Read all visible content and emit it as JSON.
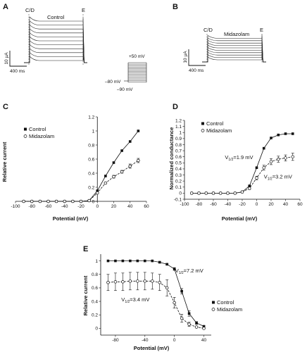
{
  "panels": {
    "A": {
      "letter": "A",
      "marker_cd": "C/D",
      "marker_e": "E",
      "condition": "Control",
      "scale_y": "10 µA",
      "scale_x": "400 ms"
    },
    "B": {
      "letter": "B",
      "marker_cd": "C/D",
      "marker_e": "E",
      "condition": "Midazolam",
      "scale_y": "10 µA",
      "scale_x": "400 ms"
    },
    "protocol": {
      "top_v": "+50 mV",
      "hold_v": "–80 mV",
      "bottom_v": "–90 mV"
    }
  },
  "chart_data": [
    {
      "id": "C",
      "letter": "C",
      "type": "line",
      "xlabel": "Potential (mV)",
      "ylabel": "Relative current",
      "xlim": [
        -100,
        60
      ],
      "ylim": [
        0,
        1.2
      ],
      "xticks": [
        -100,
        -80,
        -60,
        -40,
        -20,
        0,
        20,
        40,
        60
      ],
      "yticks": [
        0,
        0.2,
        0.4,
        0.6,
        0.8,
        1.0,
        1.2
      ],
      "legend": "top-left",
      "series": [
        {
          "name": "Control",
          "marker": "filled-square",
          "x": [
            -90,
            -80,
            -70,
            -60,
            -50,
            -40,
            -30,
            -20,
            -10,
            0,
            10,
            20,
            30,
            40,
            50
          ],
          "y": [
            0,
            0,
            0,
            0,
            0,
            0,
            0,
            0,
            0.01,
            0.15,
            0.36,
            0.55,
            0.72,
            0.85,
            1.0
          ]
        },
        {
          "name": "Midazolam",
          "marker": "open-circle",
          "x": [
            -90,
            -80,
            -70,
            -60,
            -50,
            -40,
            -30,
            -20,
            -10,
            0,
            10,
            20,
            30,
            40,
            50
          ],
          "y": [
            0,
            0,
            0,
            0,
            0,
            0,
            0,
            0,
            0.01,
            0.12,
            0.26,
            0.35,
            0.42,
            0.5,
            0.58
          ],
          "err": [
            0,
            0,
            0,
            0,
            0,
            0,
            0,
            0,
            0,
            0.01,
            0.01,
            0.02,
            0.02,
            0.03,
            0.03
          ]
        }
      ]
    },
    {
      "id": "D",
      "letter": "D",
      "type": "line",
      "xlabel": "Potential (mV)",
      "ylabel": "Normalized conductance",
      "xlim": [
        -100,
        60
      ],
      "ylim": [
        -0.1,
        1.2
      ],
      "xticks": [
        -100,
        -80,
        -60,
        -40,
        -20,
        0,
        20,
        40,
        60
      ],
      "yticks": [
        -0.1,
        0,
        0.1,
        0.2,
        0.3,
        0.4,
        0.5,
        0.6,
        0.7,
        0.8,
        0.9,
        1.0,
        1.1,
        1.2
      ],
      "legend": "top-left",
      "annotations": [
        {
          "pre": "V",
          "sub": "1/2",
          "post": "=1.9 mV",
          "x": -44,
          "y": 0.56
        },
        {
          "pre": "V",
          "sub": "1/2",
          "post": "=3.2 mV",
          "x": 10,
          "y": 0.24
        }
      ],
      "series": [
        {
          "name": "Control",
          "marker": "filled-square",
          "x": [
            -90,
            -80,
            -70,
            -60,
            -50,
            -40,
            -30,
            -20,
            -10,
            0,
            10,
            20,
            30,
            40,
            50
          ],
          "y": [
            0,
            0,
            0,
            0,
            0,
            0,
            0,
            0.02,
            0.12,
            0.42,
            0.74,
            0.91,
            0.96,
            0.98,
            0.98
          ]
        },
        {
          "name": "Midazolam",
          "marker": "open-circle",
          "x": [
            -90,
            -80,
            -70,
            -60,
            -50,
            -40,
            -30,
            -20,
            -10,
            0,
            10,
            20,
            30,
            40,
            50
          ],
          "y": [
            0,
            0,
            0,
            0,
            0,
            0,
            0,
            0.02,
            0.08,
            0.25,
            0.42,
            0.52,
            0.56,
            0.58,
            0.6
          ],
          "err": [
            0,
            0,
            0,
            0,
            0,
            0,
            0,
            0.01,
            0.02,
            0.03,
            0.04,
            0.05,
            0.05,
            0.05,
            0.06
          ]
        }
      ]
    },
    {
      "id": "E",
      "letter": "E",
      "type": "line",
      "xlabel": "Potential (mV)",
      "ylabel": "Relative current",
      "xlim": [
        -100,
        50
      ],
      "ylim": [
        -0.1,
        1.1
      ],
      "xticks": [
        -80,
        -40,
        0,
        40
      ],
      "yticks": [
        0,
        0.2,
        0.4,
        0.6,
        0.8,
        1.0
      ],
      "legend": "right",
      "annotations": [
        {
          "pre": "V",
          "sub": "1/2",
          "post": "=7.2 mV",
          "x": 1,
          "y": 0.83
        },
        {
          "pre": "V",
          "sub": "1/2",
          "post": "=3.4 mV",
          "x": -72,
          "y": 0.4
        }
      ],
      "series": [
        {
          "name": "Control",
          "marker": "filled-square",
          "x": [
            -90,
            -80,
            -70,
            -60,
            -50,
            -40,
            -30,
            -20,
            -10,
            0,
            10,
            20,
            30,
            40
          ],
          "y": [
            1.0,
            1.0,
            1.0,
            1.0,
            1.0,
            1.0,
            1.0,
            0.98,
            0.95,
            0.88,
            0.55,
            0.22,
            0.08,
            0.03
          ],
          "err": [
            0,
            0,
            0,
            0,
            0,
            0,
            0,
            0.01,
            0.01,
            0.02,
            0.04,
            0.04,
            0.02,
            0.01
          ]
        },
        {
          "name": "Midazolam",
          "marker": "open-circle",
          "x": [
            -90,
            -80,
            -70,
            -60,
            -50,
            -40,
            -30,
            -20,
            -10,
            0,
            10,
            20,
            30,
            40
          ],
          "y": [
            0.68,
            0.69,
            0.69,
            0.7,
            0.7,
            0.7,
            0.7,
            0.68,
            0.6,
            0.38,
            0.15,
            0.06,
            0.02,
            0.0
          ],
          "err": [
            0.12,
            0.13,
            0.13,
            0.13,
            0.13,
            0.13,
            0.12,
            0.12,
            0.12,
            0.08,
            0.06,
            0.03,
            0.01,
            0.01
          ]
        }
      ]
    }
  ]
}
